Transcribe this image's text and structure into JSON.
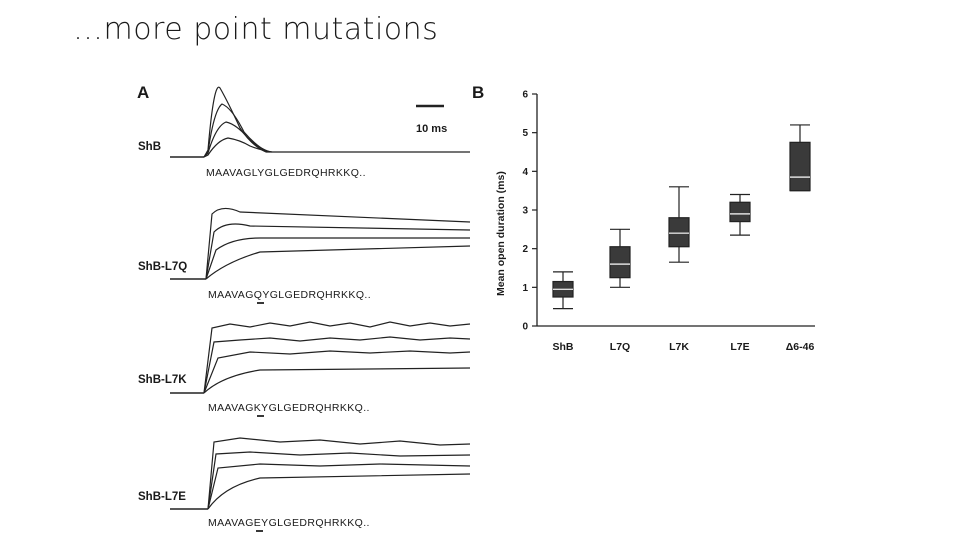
{
  "slide": {
    "title": "…more point mutations"
  },
  "panel_a": {
    "letter": "A",
    "scale_label": "10 ms",
    "records": [
      {
        "label": "ShB",
        "sequence": "MAAVAGLYGLGEDRQHRKKQ.."
      },
      {
        "label": "ShB-L7Q",
        "sequence": "MAAVAGQYGLGEDRQHRKKQ.."
      },
      {
        "label": "ShB-L7K",
        "sequence": "MAAVAGKYGLGEDRQHRKKQ.."
      },
      {
        "label": "ShB-L7E",
        "sequence": "MAAVAGEYGLGEDRQHRKKQ.."
      }
    ]
  },
  "panel_b": {
    "letter": "B",
    "chart_data": {
      "type": "box",
      "ylabel": "Mean open duration (ms)",
      "ylim": [
        0,
        6
      ],
      "yticks": [
        "0",
        "1",
        "2",
        "3",
        "4",
        "5",
        "6"
      ],
      "categories": [
        "ShB",
        "L7Q",
        "L7K",
        "L7E",
        "Δ6-46"
      ],
      "boxes": [
        {
          "whisker_low": 0.45,
          "q1": 0.75,
          "median": 0.95,
          "q3": 1.15,
          "whisker_high": 1.4
        },
        {
          "whisker_low": 1.0,
          "q1": 1.25,
          "median": 1.6,
          "q3": 2.05,
          "whisker_high": 2.5
        },
        {
          "whisker_low": 1.65,
          "q1": 2.05,
          "median": 2.4,
          "q3": 2.8,
          "whisker_high": 3.6
        },
        {
          "whisker_low": 2.35,
          "q1": 2.7,
          "median": 2.9,
          "q3": 3.2,
          "whisker_high": 3.4
        },
        {
          "whisker_low": 3.5,
          "q1": 3.5,
          "median": 3.85,
          "q3": 4.75,
          "whisker_high": 5.2
        }
      ]
    }
  }
}
